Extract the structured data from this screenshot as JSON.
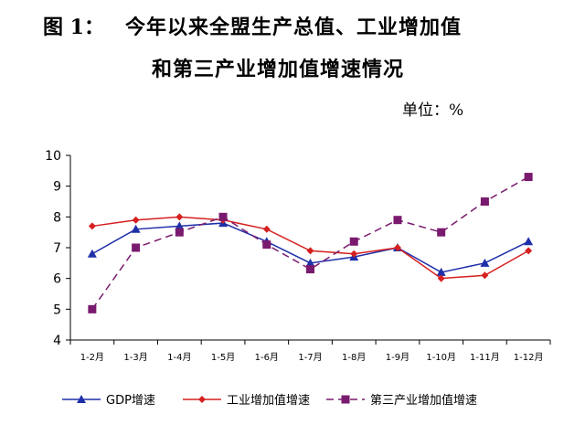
{
  "figure": {
    "label": "图 1：",
    "title_line1": "今年以来全盟生产总值、工业增加值",
    "title_line2": "和第三产业增加值增速情况",
    "unit": "单位：%"
  },
  "chart_data": {
    "type": "line",
    "title": "今年以来全盟生产总值、工业增加值和第三产业增加值增速情况",
    "categories": [
      "1-2月",
      "1-3月",
      "1-4月",
      "1-5月",
      "1-6月",
      "1-7月",
      "1-8月",
      "1-9月",
      "1-10月",
      "1-11月",
      "1-12月"
    ],
    "ylim": [
      4,
      10
    ],
    "yticks": [
      4,
      5,
      6,
      7,
      8,
      9,
      10
    ],
    "grid": false,
    "legend_position": "bottom",
    "series": [
      {
        "name": "GDP增速",
        "color": "#1f2fa8",
        "marker": "triangle",
        "dashed": false,
        "values": [
          6.8,
          7.6,
          7.7,
          7.8,
          7.2,
          6.5,
          6.7,
          7.0,
          6.2,
          6.5,
          7.2
        ]
      },
      {
        "name": "工业增加值增速",
        "color": "#d62020",
        "marker": "diamond",
        "dashed": false,
        "values": [
          7.7,
          7.9,
          8.0,
          7.9,
          7.6,
          6.9,
          6.8,
          7.0,
          6.0,
          6.1,
          6.9
        ]
      },
      {
        "name": "第三产业增加值增速",
        "color": "#7a1a6e",
        "marker": "square",
        "dashed": true,
        "values": [
          5.0,
          7.0,
          7.5,
          8.0,
          7.1,
          6.3,
          7.2,
          7.9,
          7.5,
          8.5,
          9.3
        ]
      }
    ]
  }
}
